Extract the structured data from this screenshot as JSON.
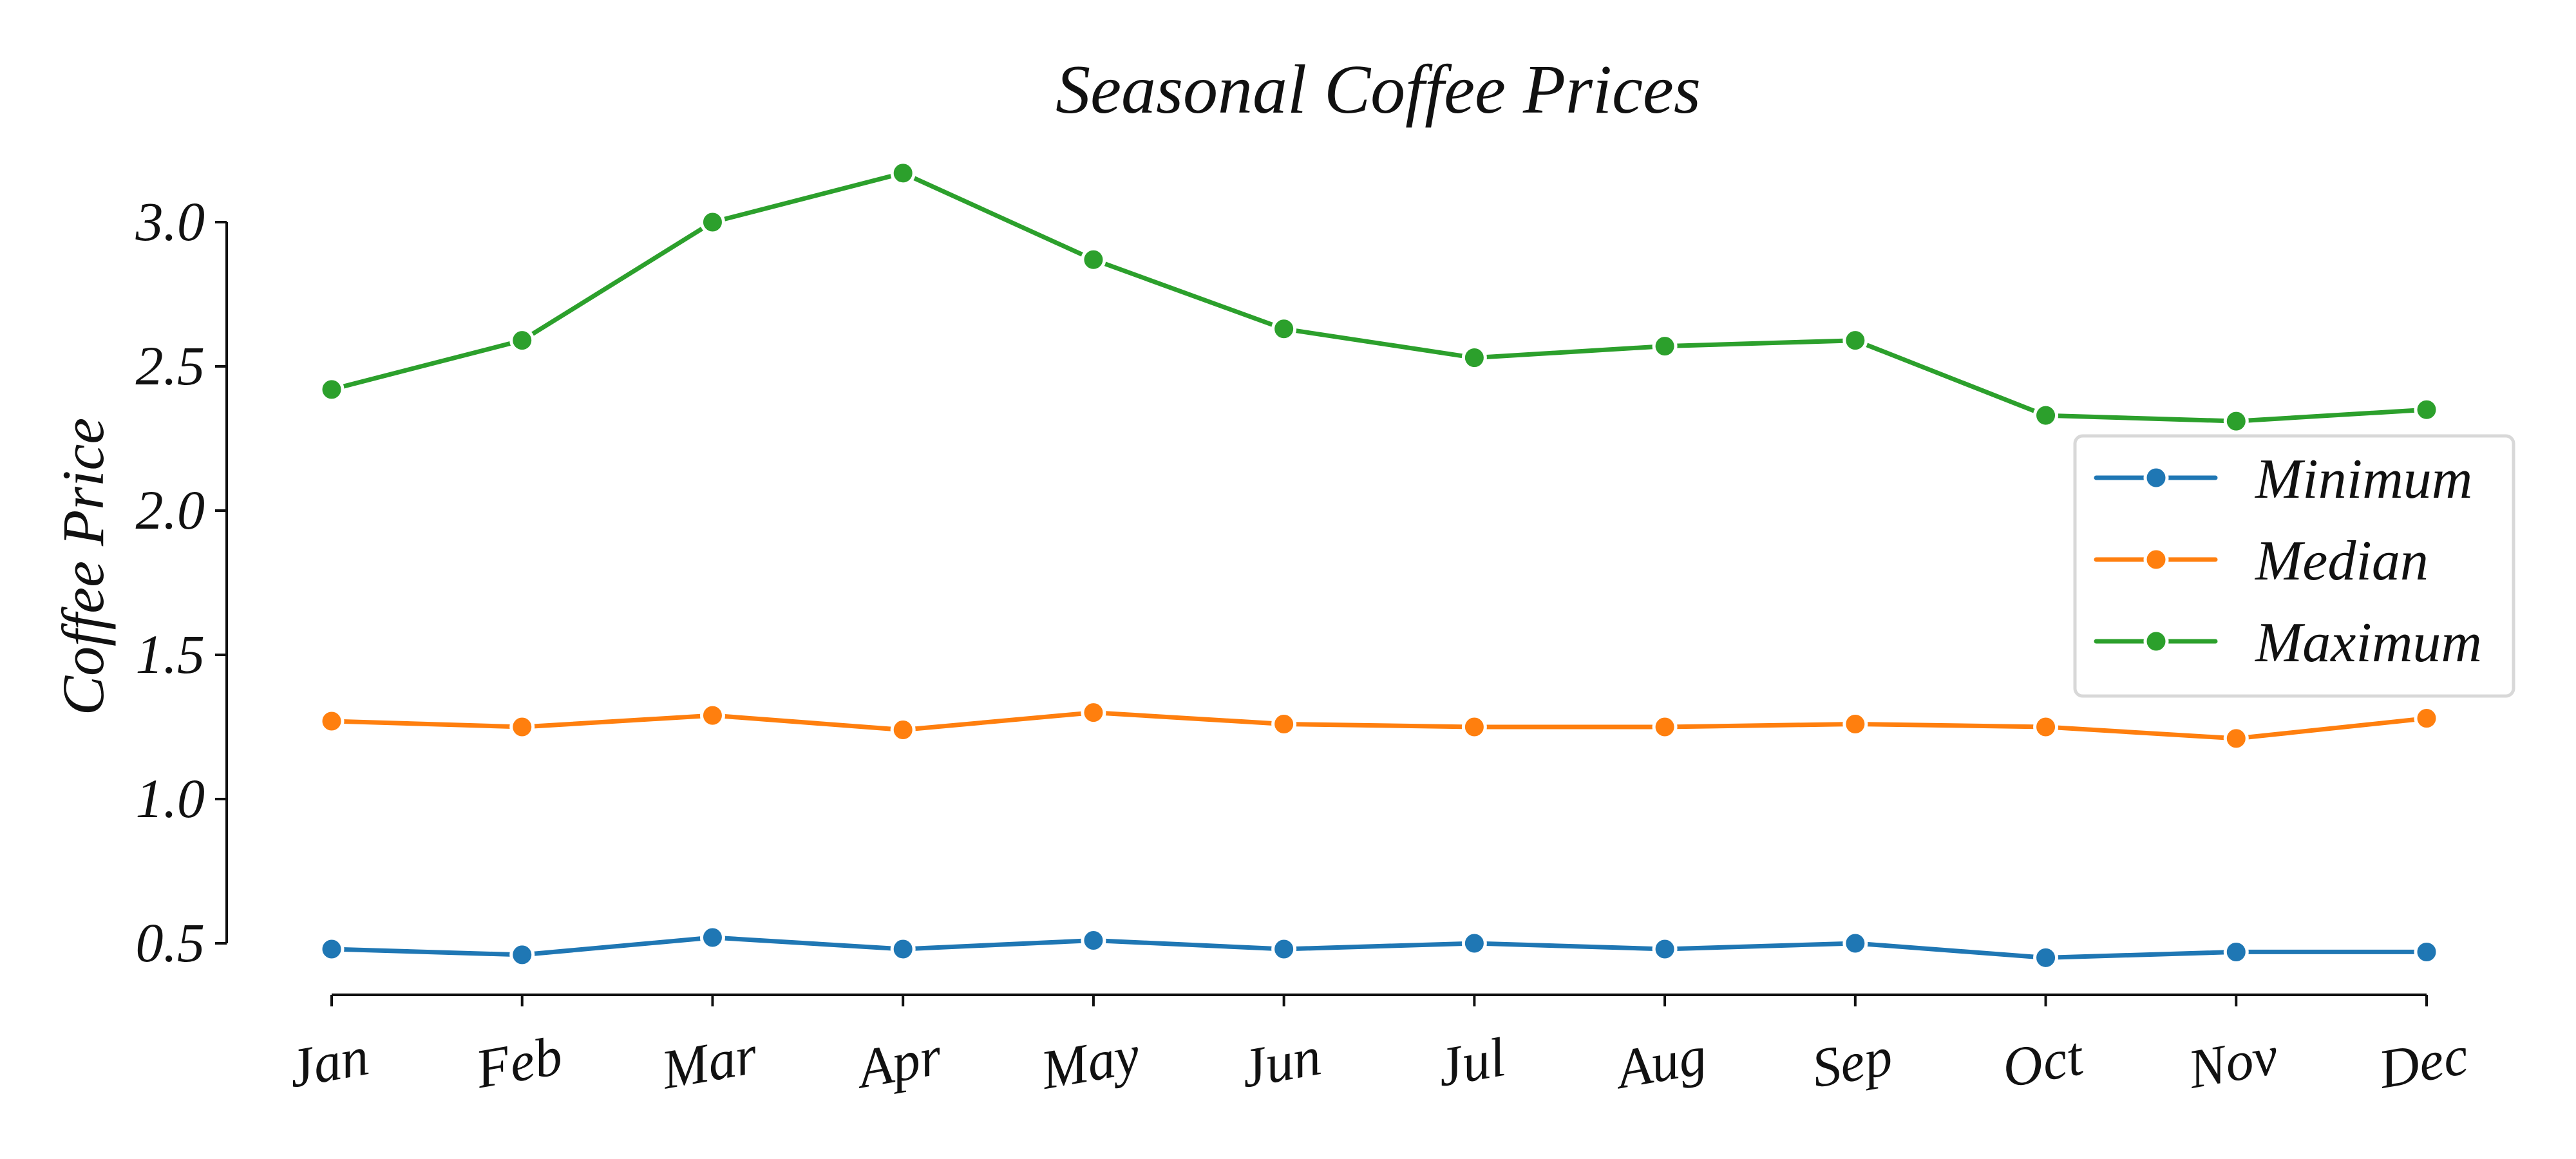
{
  "chart_data": {
    "type": "line",
    "title": "Seasonal Coffee Prices",
    "xlabel": "",
    "ylabel": "Coffee Price",
    "categories": [
      "Jan",
      "Feb",
      "Mar",
      "Apr",
      "May",
      "Jun",
      "Jul",
      "Aug",
      "Sep",
      "Oct",
      "Nov",
      "Dec"
    ],
    "ylim": [
      0.5,
      3.0
    ],
    "yticks": [
      "0.5",
      "1.0",
      "1.5",
      "2.0",
      "2.5",
      "3.0"
    ],
    "grid": false,
    "legend": {
      "placement": "right",
      "items": [
        "Minimum",
        "Median",
        "Maximum"
      ]
    },
    "series": [
      {
        "name": "Minimum",
        "color": "#1f77b4",
        "values": [
          0.48,
          0.46,
          0.52,
          0.48,
          0.51,
          0.48,
          0.5,
          0.48,
          0.5,
          0.45,
          0.47,
          0.47
        ]
      },
      {
        "name": "Median",
        "color": "#ff7f0e",
        "values": [
          1.27,
          1.25,
          1.29,
          1.24,
          1.3,
          1.26,
          1.25,
          1.25,
          1.26,
          1.25,
          1.21,
          1.28
        ]
      },
      {
        "name": "Maximum",
        "color": "#2ca02c",
        "values": [
          2.42,
          2.59,
          3.0,
          3.17,
          2.87,
          2.63,
          2.53,
          2.57,
          2.59,
          2.33,
          2.31,
          2.35
        ]
      }
    ]
  }
}
